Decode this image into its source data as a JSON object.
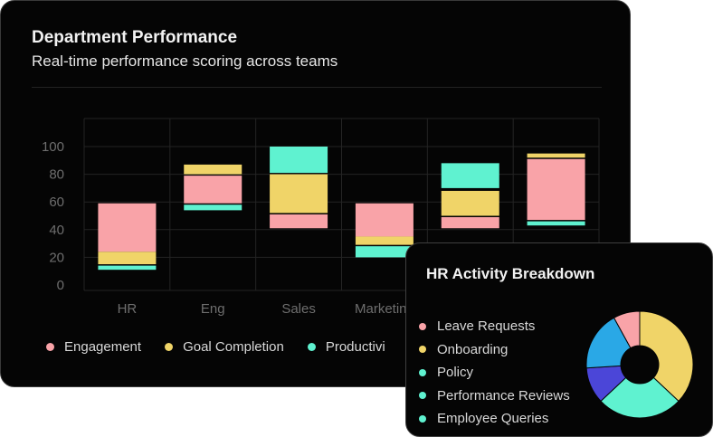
{
  "main_card": {
    "title": "Department Performance",
    "subtitle": "Real-time performance scoring across teams"
  },
  "chart_data": {
    "type": "bar",
    "stacked": "floating",
    "categories": [
      "HR",
      "Eng",
      "Sales",
      "Marketing",
      "",
      ""
    ],
    "ylim": [
      0,
      100
    ],
    "yticks": [
      0,
      20,
      40,
      60,
      80,
      100
    ],
    "series": [
      {
        "name": "Engagement",
        "color": "#f9a3a8",
        "ranges": [
          [
            24,
            59
          ],
          [
            59,
            79
          ],
          [
            41,
            51
          ],
          [
            35,
            59
          ],
          [
            41,
            49
          ],
          [
            47,
            91
          ]
        ]
      },
      {
        "name": "Goal Completion",
        "color": "#f0d468",
        "ranges": [
          [
            15,
            24
          ],
          [
            80,
            87
          ],
          [
            52,
            80
          ],
          [
            29,
            35
          ],
          [
            50,
            68
          ],
          [
            92,
            95
          ]
        ]
      },
      {
        "name": "Productivity",
        "color": "#5ff2d0",
        "ranges": [
          [
            11,
            14
          ],
          [
            54,
            58
          ],
          [
            81,
            100
          ],
          [
            20,
            28
          ],
          [
            70,
            88
          ],
          [
            43,
            46
          ]
        ]
      }
    ],
    "legend_labels": [
      "Engagement",
      "Goal Completion",
      "Productivi"
    ]
  },
  "popup": {
    "title": "HR Activity Breakdown",
    "legend": [
      {
        "label": "Leave Requests",
        "color": "#f9a3a8"
      },
      {
        "label": "Onboarding",
        "color": "#f0d468"
      },
      {
        "label": "Policy",
        "color": "#5ff2d0"
      },
      {
        "label": "Performance Reviews",
        "color": "#5ff2d0"
      },
      {
        "label": "Employee Queries",
        "color": "#5ff2d0"
      }
    ],
    "donut": [
      {
        "name": "Onboarding",
        "value": 37,
        "color": "#f0d468"
      },
      {
        "name": "Policy",
        "value": 26,
        "color": "#5ff2d0"
      },
      {
        "name": "Performance Reviews",
        "value": 11,
        "color": "#4b46d8"
      },
      {
        "name": "Employee Queries",
        "value": 18,
        "color": "#2aa8e6"
      },
      {
        "name": "Leave Requests",
        "value": 8,
        "color": "#f9a3a8"
      }
    ]
  }
}
